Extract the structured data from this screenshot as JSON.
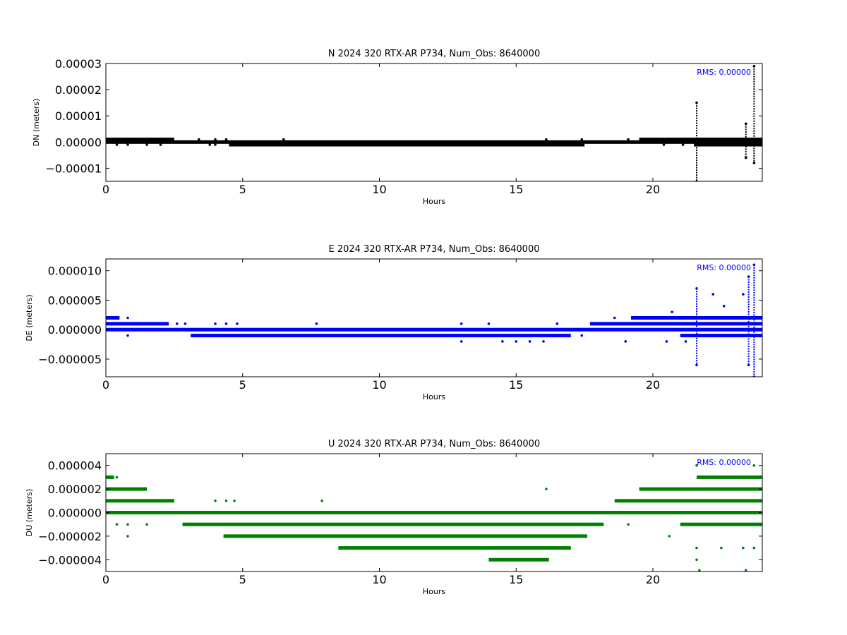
{
  "chart_data": [
    {
      "type": "scatter",
      "title": "N 2024 320 RTX-AR  P734, Num_Obs: 8640000",
      "xlabel": "Hours",
      "ylabel": "DN (meters)",
      "xlim": [
        0,
        24
      ],
      "ylim": [
        -1.5e-05,
        3e-05
      ],
      "xticks": [
        0,
        5,
        10,
        15,
        20
      ],
      "xtick_labels": [
        "0",
        "5",
        "10",
        "15",
        "20"
      ],
      "yticks": [
        -1e-05,
        0,
        1e-05,
        2e-05,
        3e-05
      ],
      "ytick_labels": [
        "−0.00001",
        "0.00000",
        "0.00001",
        "0.00002",
        "0.00003"
      ],
      "annotation": "RMS:  0.00000",
      "annotation_color": "#0000ff",
      "color": "#000000",
      "grid": false,
      "series": [
        {
          "bands": [
            {
              "y": 1e-06,
              "x": [
                [
                  0,
                  2.5
                ],
                [
                  19.5,
                  24
                ]
              ]
            },
            {
              "y": 0.0,
              "x": [
                [
                  0,
                  24
                ]
              ]
            },
            {
              "y": -1e-06,
              "x": [
                [
                  4.5,
                  17.5
                ],
                [
                  21.5,
                  24
                ]
              ]
            }
          ],
          "points": [
            [
              0.4,
              -1e-06
            ],
            [
              0.8,
              -1e-06
            ],
            [
              1.5,
              -1e-06
            ],
            [
              2.0,
              -1e-06
            ],
            [
              3.4,
              1e-06
            ],
            [
              3.8,
              -1e-06
            ],
            [
              4.0,
              1e-06
            ],
            [
              4.0,
              -1e-06
            ],
            [
              4.4,
              1e-06
            ],
            [
              6.5,
              1e-06
            ],
            [
              16.1,
              1e-06
            ],
            [
              17.4,
              1e-06
            ],
            [
              19.1,
              1e-06
            ],
            [
              20.4,
              -1e-06
            ],
            [
              21.1,
              -1e-06
            ],
            [
              22.2,
              1e-06
            ],
            [
              21.6,
              1.5e-05
            ],
            [
              21.6,
              -1.5e-05
            ],
            [
              23.4,
              7e-06
            ],
            [
              23.4,
              -6e-06
            ],
            [
              23.7,
              2.9e-05
            ],
            [
              23.7,
              -8e-06
            ]
          ]
        }
      ],
      "spikes": [
        {
          "x": 21.6,
          "y": [
            -1.5e-05,
            1.5e-05
          ]
        },
        {
          "x": 23.4,
          "y": [
            -6e-06,
            7e-06
          ]
        },
        {
          "x": 23.7,
          "y": [
            -8e-06,
            2.9e-05
          ]
        }
      ]
    },
    {
      "type": "scatter",
      "title": "E 2024 320 RTX-AR  P734, Num_Obs: 8640000",
      "xlabel": "Hours",
      "ylabel": "DE (meters)",
      "xlim": [
        0,
        24
      ],
      "ylim": [
        -8e-06,
        1.2e-05
      ],
      "xticks": [
        0,
        5,
        10,
        15,
        20
      ],
      "xtick_labels": [
        "0",
        "5",
        "10",
        "15",
        "20"
      ],
      "yticks": [
        -5e-06,
        0,
        5e-06,
        1e-05
      ],
      "ytick_labels": [
        "−0.000005",
        "0.000000",
        "0.000005",
        "0.000010"
      ],
      "annotation": "RMS:  0.00000",
      "annotation_color": "#0000ff",
      "color": "#0000ff",
      "grid": false,
      "series": [
        {
          "bands": [
            {
              "y": 2e-06,
              "x": [
                [
                  0,
                  0.5
                ],
                [
                  19.2,
                  24
                ]
              ]
            },
            {
              "y": 1e-06,
              "x": [
                [
                  0,
                  2.3
                ],
                [
                  17.7,
                  24
                ]
              ]
            },
            {
              "y": 0.0,
              "x": [
                [
                  0,
                  24
                ]
              ]
            },
            {
              "y": -1e-06,
              "x": [
                [
                  3.1,
                  17.0
                ],
                [
                  21.0,
                  24
                ]
              ]
            }
          ],
          "points": [
            [
              0.8,
              2e-06
            ],
            [
              0.8,
              -1e-06
            ],
            [
              2.6,
              1e-06
            ],
            [
              2.9,
              1e-06
            ],
            [
              4.0,
              1e-06
            ],
            [
              4.4,
              1e-06
            ],
            [
              4.8,
              1e-06
            ],
            [
              7.7,
              1e-06
            ],
            [
              13.0,
              1e-06
            ],
            [
              13.0,
              -2e-06
            ],
            [
              14.0,
              1e-06
            ],
            [
              14.5,
              -2e-06
            ],
            [
              15.0,
              -2e-06
            ],
            [
              15.5,
              -2e-06
            ],
            [
              16.0,
              -2e-06
            ],
            [
              16.5,
              1e-06
            ],
            [
              17.4,
              -1e-06
            ],
            [
              18.6,
              2e-06
            ],
            [
              19.0,
              -2e-06
            ],
            [
              20.5,
              -2e-06
            ],
            [
              21.2,
              -2e-06
            ],
            [
              21.6,
              7e-06
            ],
            [
              21.6,
              -6e-06
            ],
            [
              22.2,
              6e-06
            ],
            [
              23.3,
              6e-06
            ],
            [
              23.5,
              9e-06
            ],
            [
              23.5,
              -6e-06
            ],
            [
              23.7,
              1.1e-05
            ],
            [
              23.7,
              -8e-06
            ],
            [
              20.7,
              3e-06
            ],
            [
              22.6,
              4e-06
            ]
          ]
        }
      ],
      "spikes": [
        {
          "x": 21.6,
          "y": [
            -6e-06,
            7e-06
          ]
        },
        {
          "x": 23.5,
          "y": [
            -6e-06,
            9e-06
          ]
        },
        {
          "x": 23.7,
          "y": [
            -8e-06,
            1.1e-05
          ]
        }
      ]
    },
    {
      "type": "scatter",
      "title": "U 2024 320 RTX-AR  P734, Num_Obs: 8640000",
      "xlabel": "Hours",
      "ylabel": "DU (meters)",
      "xlim": [
        0,
        24
      ],
      "ylim": [
        -5e-06,
        5e-06
      ],
      "xticks": [
        0,
        5,
        10,
        15,
        20
      ],
      "xtick_labels": [
        "0",
        "5",
        "10",
        "15",
        "20"
      ],
      "yticks": [
        -4e-06,
        -2e-06,
        0,
        2e-06,
        4e-06
      ],
      "ytick_labels": [
        "−0.000004",
        "−0.000002",
        "0.000000",
        "0.000002",
        "0.000004"
      ],
      "annotation": "RMS:  0.00000",
      "annotation_color": "#0000ff",
      "color": "#007f00",
      "grid": false,
      "series": [
        {
          "bands": [
            {
              "y": 3e-06,
              "x": [
                [
                  0,
                  0.3
                ],
                [
                  21.6,
                  24
                ]
              ]
            },
            {
              "y": 2e-06,
              "x": [
                [
                  0,
                  1.5
                ],
                [
                  19.5,
                  24
                ]
              ]
            },
            {
              "y": 1e-06,
              "x": [
                [
                  0,
                  2.5
                ],
                [
                  18.6,
                  24
                ]
              ]
            },
            {
              "y": 0.0,
              "x": [
                [
                  0,
                  24
                ]
              ]
            },
            {
              "y": -1e-06,
              "x": [
                [
                  2.8,
                  18.2
                ],
                [
                  21.0,
                  24
                ]
              ]
            },
            {
              "y": -2e-06,
              "x": [
                [
                  4.3,
                  17.6
                ]
              ]
            },
            {
              "y": -3e-06,
              "x": [
                [
                  8.5,
                  17.0
                ]
              ]
            },
            {
              "y": -4e-06,
              "x": [
                [
                  14.0,
                  16.2
                ]
              ]
            }
          ],
          "points": [
            [
              0.4,
              3e-06
            ],
            [
              0.4,
              -1e-06
            ],
            [
              0.8,
              -1e-06
            ],
            [
              0.8,
              -2e-06
            ],
            [
              1.5,
              -1e-06
            ],
            [
              4.0,
              1e-06
            ],
            [
              4.4,
              1e-06
            ],
            [
              4.7,
              1e-06
            ],
            [
              7.9,
              1e-06
            ],
            [
              16.1,
              2e-06
            ],
            [
              19.1,
              -1e-06
            ],
            [
              20.6,
              -2e-06
            ],
            [
              21.6,
              -3e-06
            ],
            [
              21.6,
              -4e-06
            ],
            [
              21.6,
              4e-06
            ],
            [
              22.5,
              -3e-06
            ],
            [
              23.3,
              -3e-06
            ],
            [
              23.7,
              4e-06
            ],
            [
              23.7,
              -3e-06
            ],
            [
              21.7,
              -4.9e-06
            ],
            [
              23.4,
              -4.9e-06
            ]
          ]
        }
      ],
      "spikes": []
    }
  ]
}
